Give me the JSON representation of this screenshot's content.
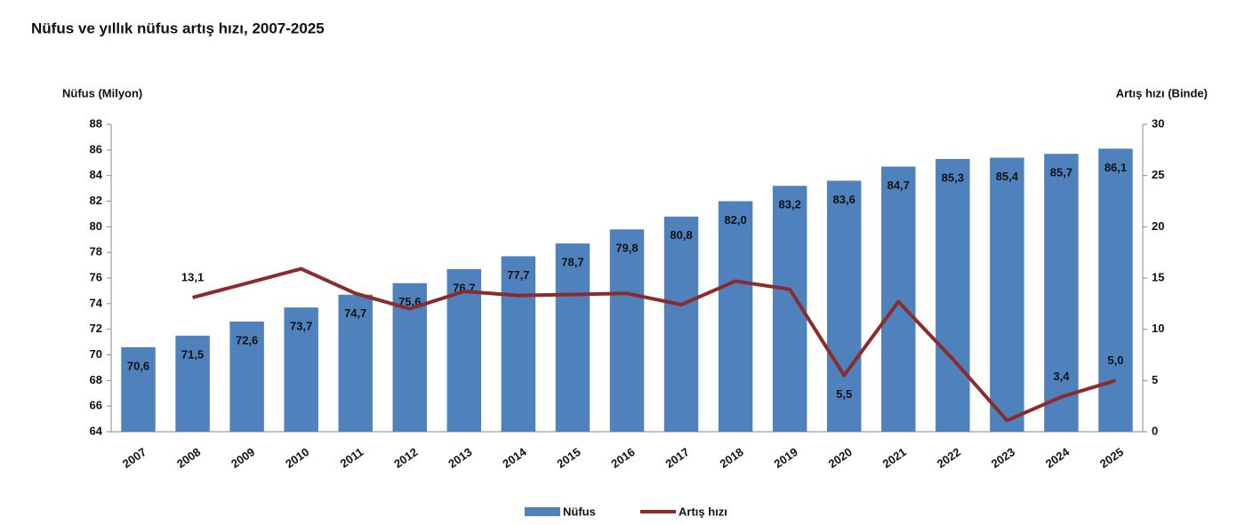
{
  "chart_data": {
    "type": "bar",
    "title": "Nüfus ve yıllık nüfus artış hızı, 2007-2025",
    "y_label": "Nüfus (Milyon)",
    "y2_label": "Artış hızı (Binde)",
    "categories": [
      "2007",
      "2008",
      "2009",
      "2010",
      "2011",
      "2012",
      "2013",
      "2014",
      "2015",
      "2016",
      "2017",
      "2018",
      "2019",
      "2020",
      "2021",
      "2022",
      "2023",
      "2024",
      "2025"
    ],
    "series": [
      {
        "name": "Nüfus",
        "type": "bar",
        "color": "#4f81bd",
        "values": [
          70.6,
          71.5,
          72.6,
          73.7,
          74.7,
          75.6,
          76.7,
          77.7,
          78.7,
          79.8,
          80.8,
          82.0,
          83.2,
          83.6,
          84.7,
          85.3,
          85.4,
          85.7,
          86.1
        ],
        "value_labels": [
          "70,6",
          "71,5",
          "72,6",
          "73,7",
          "74,7",
          "75,6",
          "76,7",
          "77,7",
          "78,7",
          "79,8",
          "80,8",
          "82,0",
          "83,2",
          "83,6",
          "84,7",
          "85,3",
          "85,4",
          "85,7",
          "86,1"
        ]
      },
      {
        "name": "Artış hızı",
        "type": "line",
        "axis": "y2",
        "color": "#8b2b2b",
        "values": [
          null,
          13.1,
          14.5,
          15.9,
          13.5,
          12.0,
          13.7,
          13.3,
          13.4,
          13.5,
          12.4,
          14.7,
          13.9,
          5.5,
          12.7,
          7.1,
          1.1,
          3.4,
          5.0
        ],
        "value_labels": [
          null,
          "13,1",
          null,
          null,
          null,
          null,
          null,
          null,
          null,
          null,
          null,
          null,
          null,
          "5,5",
          null,
          null,
          null,
          "3,4",
          "5,0"
        ]
      }
    ],
    "ylim": [
      64,
      88
    ],
    "yticks": [
      64,
      66,
      68,
      70,
      72,
      74,
      76,
      78,
      80,
      82,
      84,
      86,
      88
    ],
    "y2lim": [
      0,
      30
    ],
    "y2ticks": [
      0,
      5,
      10,
      15,
      20,
      25,
      30
    ],
    "grid": false
  }
}
